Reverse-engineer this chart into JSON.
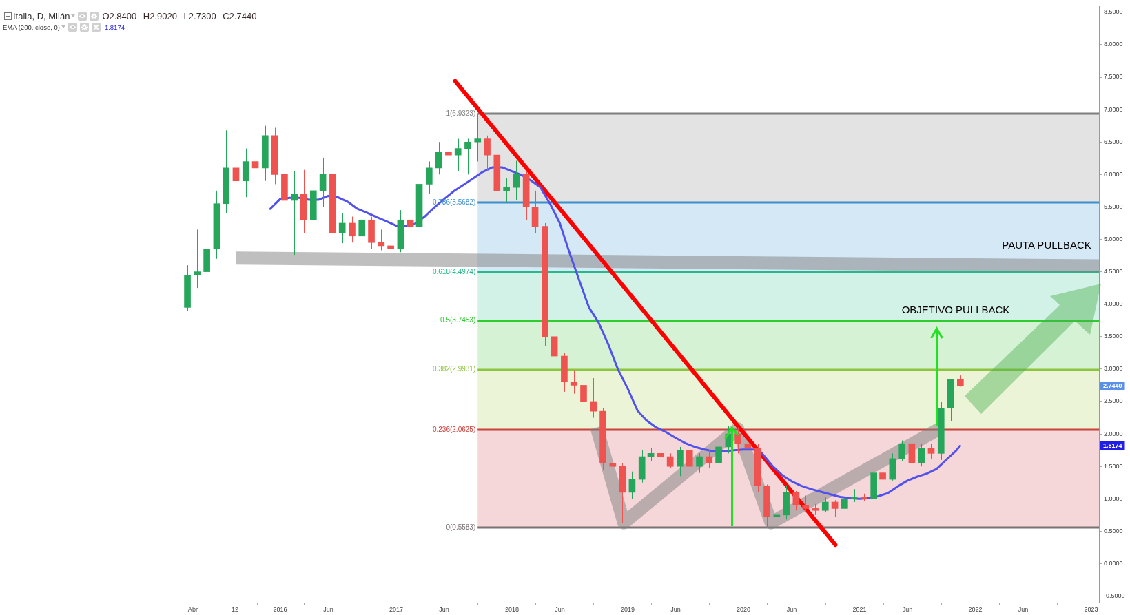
{
  "chart_data": {
    "type": "candlestick",
    "title": "Italia, D, Milán",
    "subtitle": "O2.8400 H2.9020 L2.7300 C2.7440",
    "annotations": [
      "EMA (200, close, 0)",
      "1.8174",
      "PAUTA PULLBACK",
      "OBJETIVO PULLBACK",
      "1.8174"
    ],
    "xlim": [
      "2013-08-01",
      "2023-01-26"
    ],
    "xticks": [
      {
        "value": "2015-04-01",
        "label": "Abr"
      },
      {
        "value": "2015-08-12",
        "label": "12"
      },
      {
        "value": "2016-01-01",
        "label": "2016"
      },
      {
        "value": "2016-06-01",
        "label": "Jun"
      },
      {
        "value": "2017-01-01",
        "label": "2017"
      },
      {
        "value": "2017-06-01",
        "label": "Jun"
      },
      {
        "value": "2018-01-01",
        "label": "2018"
      },
      {
        "value": "2018-06-01",
        "label": "Jun"
      },
      {
        "value": "2019-01-01",
        "label": "2019"
      },
      {
        "value": "2019-06-01",
        "label": "Jun"
      },
      {
        "value": "2020-01-01",
        "label": "2020"
      },
      {
        "value": "2020-06-01",
        "label": "Jun"
      },
      {
        "value": "2021-01-01",
        "label": "2021"
      },
      {
        "value": "2021-06-01",
        "label": "Jun"
      },
      {
        "value": "2022-01-01",
        "label": "2022"
      },
      {
        "value": "2022-06-01",
        "label": "Jun"
      },
      {
        "value": "2023-01-01",
        "label": "2023"
      }
    ],
    "ylim": [
      -0.6,
      8.6
    ],
    "yticks": [
      {
        "value": -0.5,
        "label": "-0.5000"
      },
      {
        "value": 0,
        "label": "0.0000"
      },
      {
        "value": 0.5,
        "label": "0.5000"
      },
      {
        "value": 1,
        "label": "1.0000"
      },
      {
        "value": 1.5,
        "label": "1.5000"
      },
      {
        "value": 2,
        "label": "2.0000"
      },
      {
        "value": 2.5,
        "label": "2.5000"
      },
      {
        "value": 3,
        "label": "3.0000"
      },
      {
        "value": 3.5,
        "label": "3.5000"
      },
      {
        "value": 4,
        "label": "4.0000"
      },
      {
        "value": 4.5,
        "label": "4.5000"
      },
      {
        "value": 5,
        "label": "5.0000"
      },
      {
        "value": 5.5,
        "label": "5.5000"
      },
      {
        "value": 6,
        "label": "6.0000"
      },
      {
        "value": 6.5,
        "label": "6.5000"
      },
      {
        "value": 7,
        "label": "7.0000"
      },
      {
        "value": 7.5,
        "label": "7.5000"
      },
      {
        "value": 8,
        "label": "8.0000"
      },
      {
        "value": 8.5,
        "label": "8.5000"
      }
    ],
    "bands": [
      {
        "axis": "y",
        "from": 5.5682,
        "to": 6.9323,
        "color": "#e3e3e3"
      },
      {
        "axis": "y",
        "from": 4.4974,
        "to": 5.5682,
        "color": "#d4e8f5"
      },
      {
        "axis": "y",
        "from": 3.7453,
        "to": 4.4974,
        "color": "#d3f2e7"
      },
      {
        "axis": "y",
        "from": 2.9931,
        "to": 3.7453,
        "color": "#d6f2d4"
      },
      {
        "axis": "y",
        "from": 2.0625,
        "to": 2.9931,
        "color": "#ebf4d6"
      },
      {
        "axis": "y",
        "from": 0.5583,
        "to": 2.0625,
        "color": "#f5d6d9"
      }
    ],
    "ref_lines": [
      {
        "axis": "y",
        "value": 6.9323,
        "label": "1(6.9323)",
        "color": "#7f7f7f"
      },
      {
        "axis": "y",
        "value": 5.5682,
        "label": "0.786(5.5682)",
        "color": "#3d8fcc"
      },
      {
        "axis": "y",
        "value": 4.4974,
        "label": "0.618(4.4974)",
        "color": "#26b98c"
      },
      {
        "axis": "y",
        "value": 3.7453,
        "label": "0.5(3.7453)",
        "color": "#2ecc2e"
      },
      {
        "axis": "y",
        "value": 2.9931,
        "label": "0.382(2.9931)",
        "color": "#8cc43c"
      },
      {
        "axis": "y",
        "value": 2.0625,
        "label": "0.236(2.0625)",
        "color": "#c9413b"
      },
      {
        "axis": "y",
        "value": 0.5583,
        "label": "0(0.5583)",
        "color": "#7a7272"
      },
      {
        "axis": "y",
        "value": 2.744,
        "label": "2.7440",
        "color": "#5b8fe8",
        "line_style": "dotted"
      }
    ],
    "series": [
      {
        "x": [
          "2015-03-15",
          "2015-04-15",
          "2015-05-15",
          "2015-06-15",
          "2015-07-15",
          "2015-08-15",
          "2015-09-15",
          "2015-10-15",
          "2015-11-15",
          "2015-12-15",
          "2016-01-15",
          "2016-02-15",
          "2016-03-15",
          "2016-04-15",
          "2016-05-15",
          "2016-06-15",
          "2016-07-15",
          "2016-08-15",
          "2016-09-15",
          "2016-10-15",
          "2016-11-15",
          "2016-12-15",
          "2017-01-15",
          "2017-02-15",
          "2017-03-15",
          "2017-04-15",
          "2017-05-15",
          "2017-06-15",
          "2017-07-15",
          "2017-08-15",
          "2017-09-15",
          "2017-10-15",
          "2017-11-15",
          "2017-12-15",
          "2018-01-15",
          "2018-02-15",
          "2018-03-15",
          "2018-04-15",
          "2018-05-15",
          "2018-06-15",
          "2018-07-15",
          "2018-08-15",
          "2018-09-15",
          "2018-10-15",
          "2018-11-15",
          "2018-12-15",
          "2019-01-15",
          "2019-02-15",
          "2019-03-15",
          "2019-04-15",
          "2019-05-15",
          "2019-06-15",
          "2019-07-15",
          "2019-08-15",
          "2019-09-15",
          "2019-10-15",
          "2019-11-15",
          "2019-12-15",
          "2020-01-15",
          "2020-02-15",
          "2020-03-15",
          "2020-04-15",
          "2020-05-15",
          "2020-06-15",
          "2020-07-15",
          "2020-08-15",
          "2020-09-15",
          "2020-10-15",
          "2020-11-15",
          "2020-12-15",
          "2021-01-15",
          "2021-02-15",
          "2021-03-15",
          "2021-04-15",
          "2021-05-15",
          "2021-06-15",
          "2021-07-15",
          "2021-08-15",
          "2021-09-15",
          "2021-10-15",
          "2021-11-15"
        ],
        "ohlc": [
          [
            3.95,
            4.6,
            3.9,
            4.45
          ],
          [
            4.45,
            5.15,
            4.25,
            4.5
          ],
          [
            4.5,
            5.0,
            4.45,
            4.85
          ],
          [
            4.85,
            5.75,
            4.7,
            5.55
          ],
          [
            5.55,
            6.68,
            5.4,
            6.1
          ],
          [
            6.1,
            6.4,
            4.87,
            5.9
          ],
          [
            5.9,
            6.4,
            5.65,
            6.2
          ],
          [
            6.2,
            6.3,
            5.64,
            6.1
          ],
          [
            6.1,
            6.75,
            5.9,
            6.6
          ],
          [
            6.6,
            6.72,
            5.85,
            6.0
          ],
          [
            6.0,
            6.3,
            5.19,
            5.6
          ],
          [
            5.6,
            6.05,
            4.76,
            5.7
          ],
          [
            5.7,
            6.07,
            5.1,
            5.3
          ],
          [
            5.3,
            5.9,
            4.97,
            5.75
          ],
          [
            5.75,
            6.26,
            5.5,
            6.0
          ],
          [
            6.0,
            6.15,
            4.8,
            5.1
          ],
          [
            5.1,
            5.4,
            4.94,
            5.25
          ],
          [
            5.25,
            5.35,
            4.95,
            5.05
          ],
          [
            5.05,
            5.54,
            4.95,
            5.3
          ],
          [
            5.3,
            5.35,
            4.85,
            4.95
          ],
          [
            4.95,
            5.15,
            4.83,
            4.9
          ],
          [
            4.9,
            5.22,
            4.71,
            4.85
          ],
          [
            4.85,
            5.45,
            4.8,
            5.3
          ],
          [
            5.3,
            5.42,
            5.1,
            5.2
          ],
          [
            5.2,
            6.0,
            5.1,
            5.85
          ],
          [
            5.85,
            6.2,
            5.7,
            6.1
          ],
          [
            6.1,
            6.5,
            6.0,
            6.35
          ],
          [
            6.35,
            6.52,
            5.98,
            6.3
          ],
          [
            6.3,
            6.55,
            6.05,
            6.4
          ],
          [
            6.4,
            6.55,
            6.0,
            6.5
          ],
          [
            6.5,
            6.9323,
            6.2,
            6.55
          ],
          [
            6.55,
            6.6,
            6.05,
            6.3
          ],
          [
            6.3,
            6.35,
            5.6,
            5.75
          ],
          [
            5.75,
            5.95,
            5.57,
            5.8
          ],
          [
            5.8,
            6.21,
            5.6,
            6.0
          ],
          [
            6.0,
            6.05,
            5.3,
            5.5
          ],
          [
            5.5,
            5.75,
            5.1,
            5.2
          ],
          [
            5.2,
            5.25,
            3.36,
            3.5
          ],
          [
            3.5,
            3.85,
            3.15,
            3.2
          ],
          [
            3.2,
            3.25,
            2.65,
            2.8
          ],
          [
            2.8,
            2.98,
            2.62,
            2.75
          ],
          [
            2.75,
            2.8,
            2.4,
            2.5
          ],
          [
            2.5,
            2.86,
            2.25,
            2.35
          ],
          [
            2.35,
            2.4,
            1.45,
            1.55
          ],
          [
            1.55,
            1.7,
            1.42,
            1.5
          ],
          [
            1.5,
            1.55,
            0.62,
            1.1
          ],
          [
            1.1,
            1.42,
            1.0,
            1.3
          ],
          [
            1.3,
            1.75,
            1.25,
            1.65
          ],
          [
            1.65,
            1.78,
            1.58,
            1.7
          ],
          [
            1.7,
            1.98,
            1.6,
            1.65
          ],
          [
            1.65,
            1.7,
            1.47,
            1.5
          ],
          [
            1.5,
            1.8,
            1.35,
            1.75
          ],
          [
            1.75,
            1.82,
            1.42,
            1.5
          ],
          [
            1.5,
            1.7,
            1.4,
            1.65
          ],
          [
            1.65,
            1.75,
            1.48,
            1.55
          ],
          [
            1.55,
            1.85,
            1.5,
            1.8
          ],
          [
            1.8,
            2.12,
            1.7,
            2.0
          ],
          [
            2.0,
            2.1,
            1.7,
            1.85
          ],
          [
            1.85,
            1.92,
            1.68,
            1.78
          ],
          [
            1.78,
            1.85,
            1.1,
            1.2
          ],
          [
            1.2,
            1.22,
            0.5583,
            0.72
          ],
          [
            0.72,
            0.8,
            0.64,
            0.75
          ],
          [
            0.75,
            1.21,
            0.68,
            1.1
          ],
          [
            1.1,
            1.12,
            0.82,
            0.9
          ],
          [
            0.9,
            1.05,
            0.8,
            0.85
          ],
          [
            0.85,
            0.92,
            0.75,
            0.82
          ],
          [
            0.82,
            1.02,
            0.8,
            0.95
          ],
          [
            0.95,
            0.98,
            0.72,
            0.85
          ],
          [
            0.85,
            1.1,
            0.82,
            1.0
          ],
          [
            1.0,
            1.15,
            0.95,
            1.02
          ],
          [
            1.02,
            1.08,
            0.96,
            1.0
          ],
          [
            1.0,
            1.5,
            0.97,
            1.4
          ],
          [
            1.4,
            1.5,
            1.24,
            1.3
          ],
          [
            1.3,
            1.7,
            1.28,
            1.62
          ],
          [
            1.62,
            1.9,
            1.58,
            1.85
          ],
          [
            1.85,
            1.9,
            1.48,
            1.55
          ],
          [
            1.55,
            1.85,
            1.5,
            1.78
          ],
          [
            1.78,
            1.85,
            1.62,
            1.7
          ],
          [
            1.7,
            2.5,
            1.6,
            2.4
          ],
          [
            2.4,
            2.85,
            2.2,
            2.84
          ],
          [
            2.84,
            2.902,
            2.73,
            2.744
          ]
        ],
        "colors": [
          "#26a65b",
          "#26a65b",
          "#26a65b",
          "#26a65b",
          "#26a65b",
          "#ef5350",
          "#26a65b",
          "#ef5350",
          "#26a65b",
          "#ef5350",
          "#ef5350",
          "#26a65b",
          "#ef5350",
          "#26a65b",
          "#26a65b",
          "#ef5350",
          "#26a65b",
          "#ef5350",
          "#26a65b",
          "#ef5350",
          "#ef5350",
          "#ef5350",
          "#26a65b",
          "#ef5350",
          "#26a65b",
          "#26a65b",
          "#26a65b",
          "#ef5350",
          "#26a65b",
          "#26a65b",
          "#26a65b",
          "#ef5350",
          "#ef5350",
          "#26a65b",
          "#26a65b",
          "#ef5350",
          "#ef5350",
          "#ef5350",
          "#ef5350",
          "#ef5350",
          "#ef5350",
          "#ef5350",
          "#ef5350",
          "#ef5350",
          "#ef5350",
          "#ef5350",
          "#26a65b",
          "#26a65b",
          "#26a65b",
          "#ef5350",
          "#ef5350",
          "#26a65b",
          "#ef5350",
          "#26a65b",
          "#ef5350",
          "#26a65b",
          "#26a65b",
          "#ef5350",
          "#ef5350",
          "#ef5350",
          "#ef5350",
          "#26a65b",
          "#26a65b",
          "#ef5350",
          "#ef5350",
          "#ef5350",
          "#26a65b",
          "#ef5350",
          "#26a65b",
          "#26a65b",
          "#ef5350",
          "#26a65b",
          "#ef5350",
          "#26a65b",
          "#26a65b",
          "#ef5350",
          "#26a65b",
          "#ef5350",
          "#26a65b",
          "#26a65b",
          "#ef5350"
        ]
      },
      {
        "type": "line",
        "color": "#5151ec",
        "x": [
          "2015-12-01",
          "2016-01-01",
          "2016-02-01",
          "2016-03-01",
          "2016-04-01",
          "2016-05-01",
          "2016-06-01",
          "2016-07-01",
          "2016-08-01",
          "2016-09-01",
          "2016-10-01",
          "2016-11-01",
          "2016-12-01",
          "2017-01-01",
          "2017-02-01",
          "2017-03-01",
          "2017-04-01",
          "2017-05-01",
          "2017-06-01",
          "2017-07-01",
          "2017-08-01",
          "2017-09-01",
          "2017-10-01",
          "2017-11-01",
          "2017-12-01",
          "2018-01-01",
          "2018-02-01",
          "2018-03-01",
          "2018-04-01",
          "2018-05-01",
          "2018-06-01",
          "2018-07-01",
          "2018-08-01",
          "2018-09-01",
          "2018-10-01",
          "2018-11-01",
          "2018-12-01",
          "2019-01-01",
          "2019-02-01",
          "2019-03-01",
          "2019-04-01",
          "2019-05-01",
          "2019-06-01",
          "2019-07-01",
          "2019-08-01",
          "2019-09-01",
          "2019-10-01",
          "2019-11-01",
          "2019-12-01",
          "2020-01-01",
          "2020-02-01",
          "2020-03-01",
          "2020-04-01",
          "2020-05-01",
          "2020-06-01",
          "2020-07-01",
          "2020-08-01",
          "2020-09-01",
          "2020-10-01",
          "2020-11-01",
          "2020-12-01",
          "2021-01-01",
          "2021-02-01",
          "2021-03-01",
          "2021-04-01",
          "2021-05-01",
          "2021-06-01",
          "2021-07-01",
          "2021-08-01",
          "2021-09-01",
          "2021-10-01",
          "2021-11-01",
          "2021-11-14"
        ],
        "values": [
          5.47,
          5.62,
          5.64,
          5.64,
          5.61,
          5.61,
          5.67,
          5.65,
          5.58,
          5.47,
          5.41,
          5.34,
          5.28,
          5.21,
          5.21,
          5.24,
          5.35,
          5.49,
          5.62,
          5.74,
          5.84,
          5.94,
          6.04,
          6.11,
          6.11,
          6.05,
          5.99,
          5.91,
          5.8,
          5.55,
          5.25,
          4.8,
          4.37,
          3.95,
          3.72,
          3.38,
          3.0,
          2.7,
          2.36,
          2.21,
          2.1,
          2.03,
          1.94,
          1.86,
          1.8,
          1.76,
          1.73,
          1.73,
          1.75,
          1.76,
          1.76,
          1.69,
          1.51,
          1.37,
          1.27,
          1.2,
          1.15,
          1.11,
          1.07,
          1.03,
          1.01,
          1.0,
          1.01,
          1.04,
          1.09,
          1.19,
          1.28,
          1.34,
          1.39,
          1.46,
          1.6,
          1.74,
          1.8174
        ]
      },
      {
        "type": "line",
        "color": "#ff0000",
        "x": [
          "2017-07-06",
          "2020-10-17"
        ],
        "values": [
          7.44,
          0.29
        ]
      },
      {
        "type": "line",
        "color": "#808080",
        "x": [
          "2015-08-16",
          "2023-01-26"
        ],
        "values": [
          4.71,
          4.59
        ]
      },
      {
        "type": "line",
        "color": "#808080",
        "x": [
          "2018-09-25",
          "2018-12-20",
          "2019-12-14",
          "2020-03-28",
          "2021-09-10"
        ],
        "values": [
          2.1,
          0.63,
          2.08,
          0.63,
          2.08
        ]
      }
    ]
  }
}
